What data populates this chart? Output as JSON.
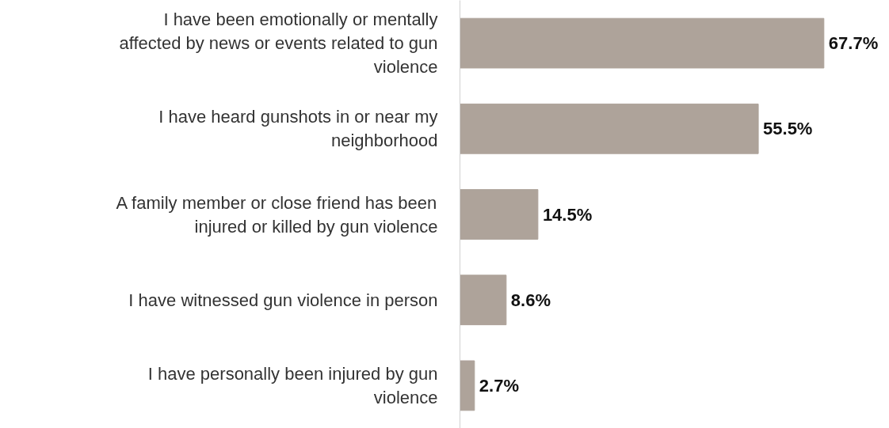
{
  "chart_data": {
    "type": "bar",
    "orientation": "horizontal",
    "categories": [
      "I have been emotionally or mentally affected by news or events related to gun violence",
      "I have heard gunshots in or near my neighborhood",
      "A family member or close friend has been injured or killed by gun violence",
      "I have witnessed gun violence in person",
      "I have personally been injured by gun violence"
    ],
    "values": [
      67.7,
      55.5,
      14.5,
      8.6,
      2.7
    ],
    "value_labels": [
      "67.7%",
      "55.5%",
      "14.5%",
      "8.6%",
      "2.7%"
    ],
    "color": "#aea39a"
  }
}
